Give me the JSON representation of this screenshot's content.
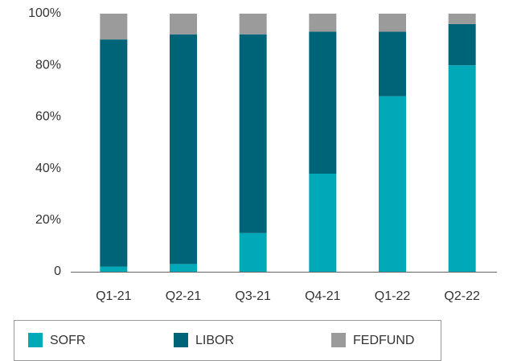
{
  "chart_data": {
    "type": "stacked_bar",
    "categories": [
      "Q1-21",
      "Q2-21",
      "Q3-21",
      "Q4-21",
      "Q1-22",
      "Q2-22"
    ],
    "series": [
      {
        "name": "SOFR",
        "color": "#00a9b8",
        "values": [
          2,
          3,
          15,
          38,
          68,
          80
        ]
      },
      {
        "name": "LIBOR",
        "color": "#006478",
        "values": [
          88,
          89,
          77,
          55,
          25,
          16
        ]
      },
      {
        "name": "FEDFUND",
        "color": "#9b9b9b",
        "values": [
          10,
          8,
          8,
          7,
          7,
          4
        ]
      }
    ],
    "ylim": [
      0,
      100
    ],
    "yticks": [
      0,
      {
        "value": 20,
        "label": "20%"
      },
      {
        "value": 40,
        "label": "40%"
      },
      {
        "value": 60,
        "label": "60%"
      },
      {
        "value": 80,
        "label": "80%"
      },
      {
        "value": 100,
        "label": "100%"
      }
    ],
    "grid": false,
    "legend": "bottom"
  }
}
